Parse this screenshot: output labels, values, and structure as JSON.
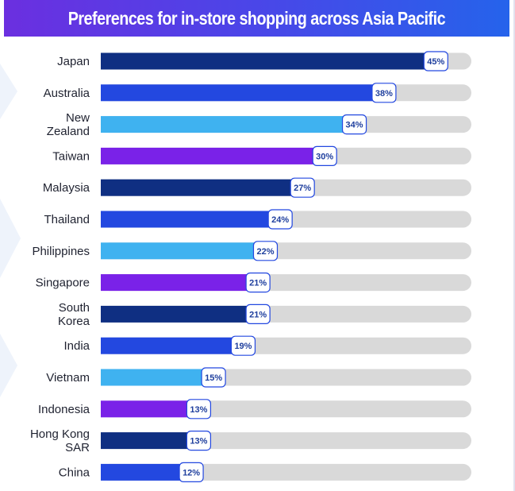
{
  "chart_data": {
    "type": "bar",
    "orientation": "horizontal",
    "title": "Preferences for in-store shopping across Asia Pacific",
    "xlabel": "",
    "ylabel": "",
    "xlim": [
      0,
      50
    ],
    "grid": false,
    "legend": "none",
    "categories": [
      [
        "Japan"
      ],
      [
        "Australia"
      ],
      [
        "New",
        "Zealand"
      ],
      [
        "Taiwan"
      ],
      [
        "Malaysia"
      ],
      [
        "Thailand"
      ],
      [
        "Philippines"
      ],
      [
        "Singapore"
      ],
      [
        "South",
        "Korea"
      ],
      [
        "India"
      ],
      [
        "Vietnam"
      ],
      [
        "Indonesia"
      ],
      [
        "Hong Kong",
        "SAR"
      ],
      [
        "China"
      ]
    ],
    "values": [
      45,
      38,
      34,
      30,
      27,
      24,
      22,
      21,
      21,
      19,
      15,
      13,
      13,
      12
    ],
    "value_labels": [
      "45%",
      "38%",
      "34%",
      "30%",
      "27%",
      "24%",
      "22%",
      "21%",
      "21%",
      "19%",
      "15%",
      "13%",
      "13%",
      "12%"
    ],
    "colors": [
      "#0f2f82",
      "#2348e0",
      "#3fb2f0",
      "#7a22e8",
      "#0f2f82",
      "#2348e0",
      "#3fb2f0",
      "#7a22e8",
      "#0f2f82",
      "#2348e0",
      "#3fb2f0",
      "#7a22e8",
      "#0f2f82",
      "#2348e0"
    ],
    "track_color": "#d9d9d9",
    "label_box_border": "#2348e0"
  }
}
